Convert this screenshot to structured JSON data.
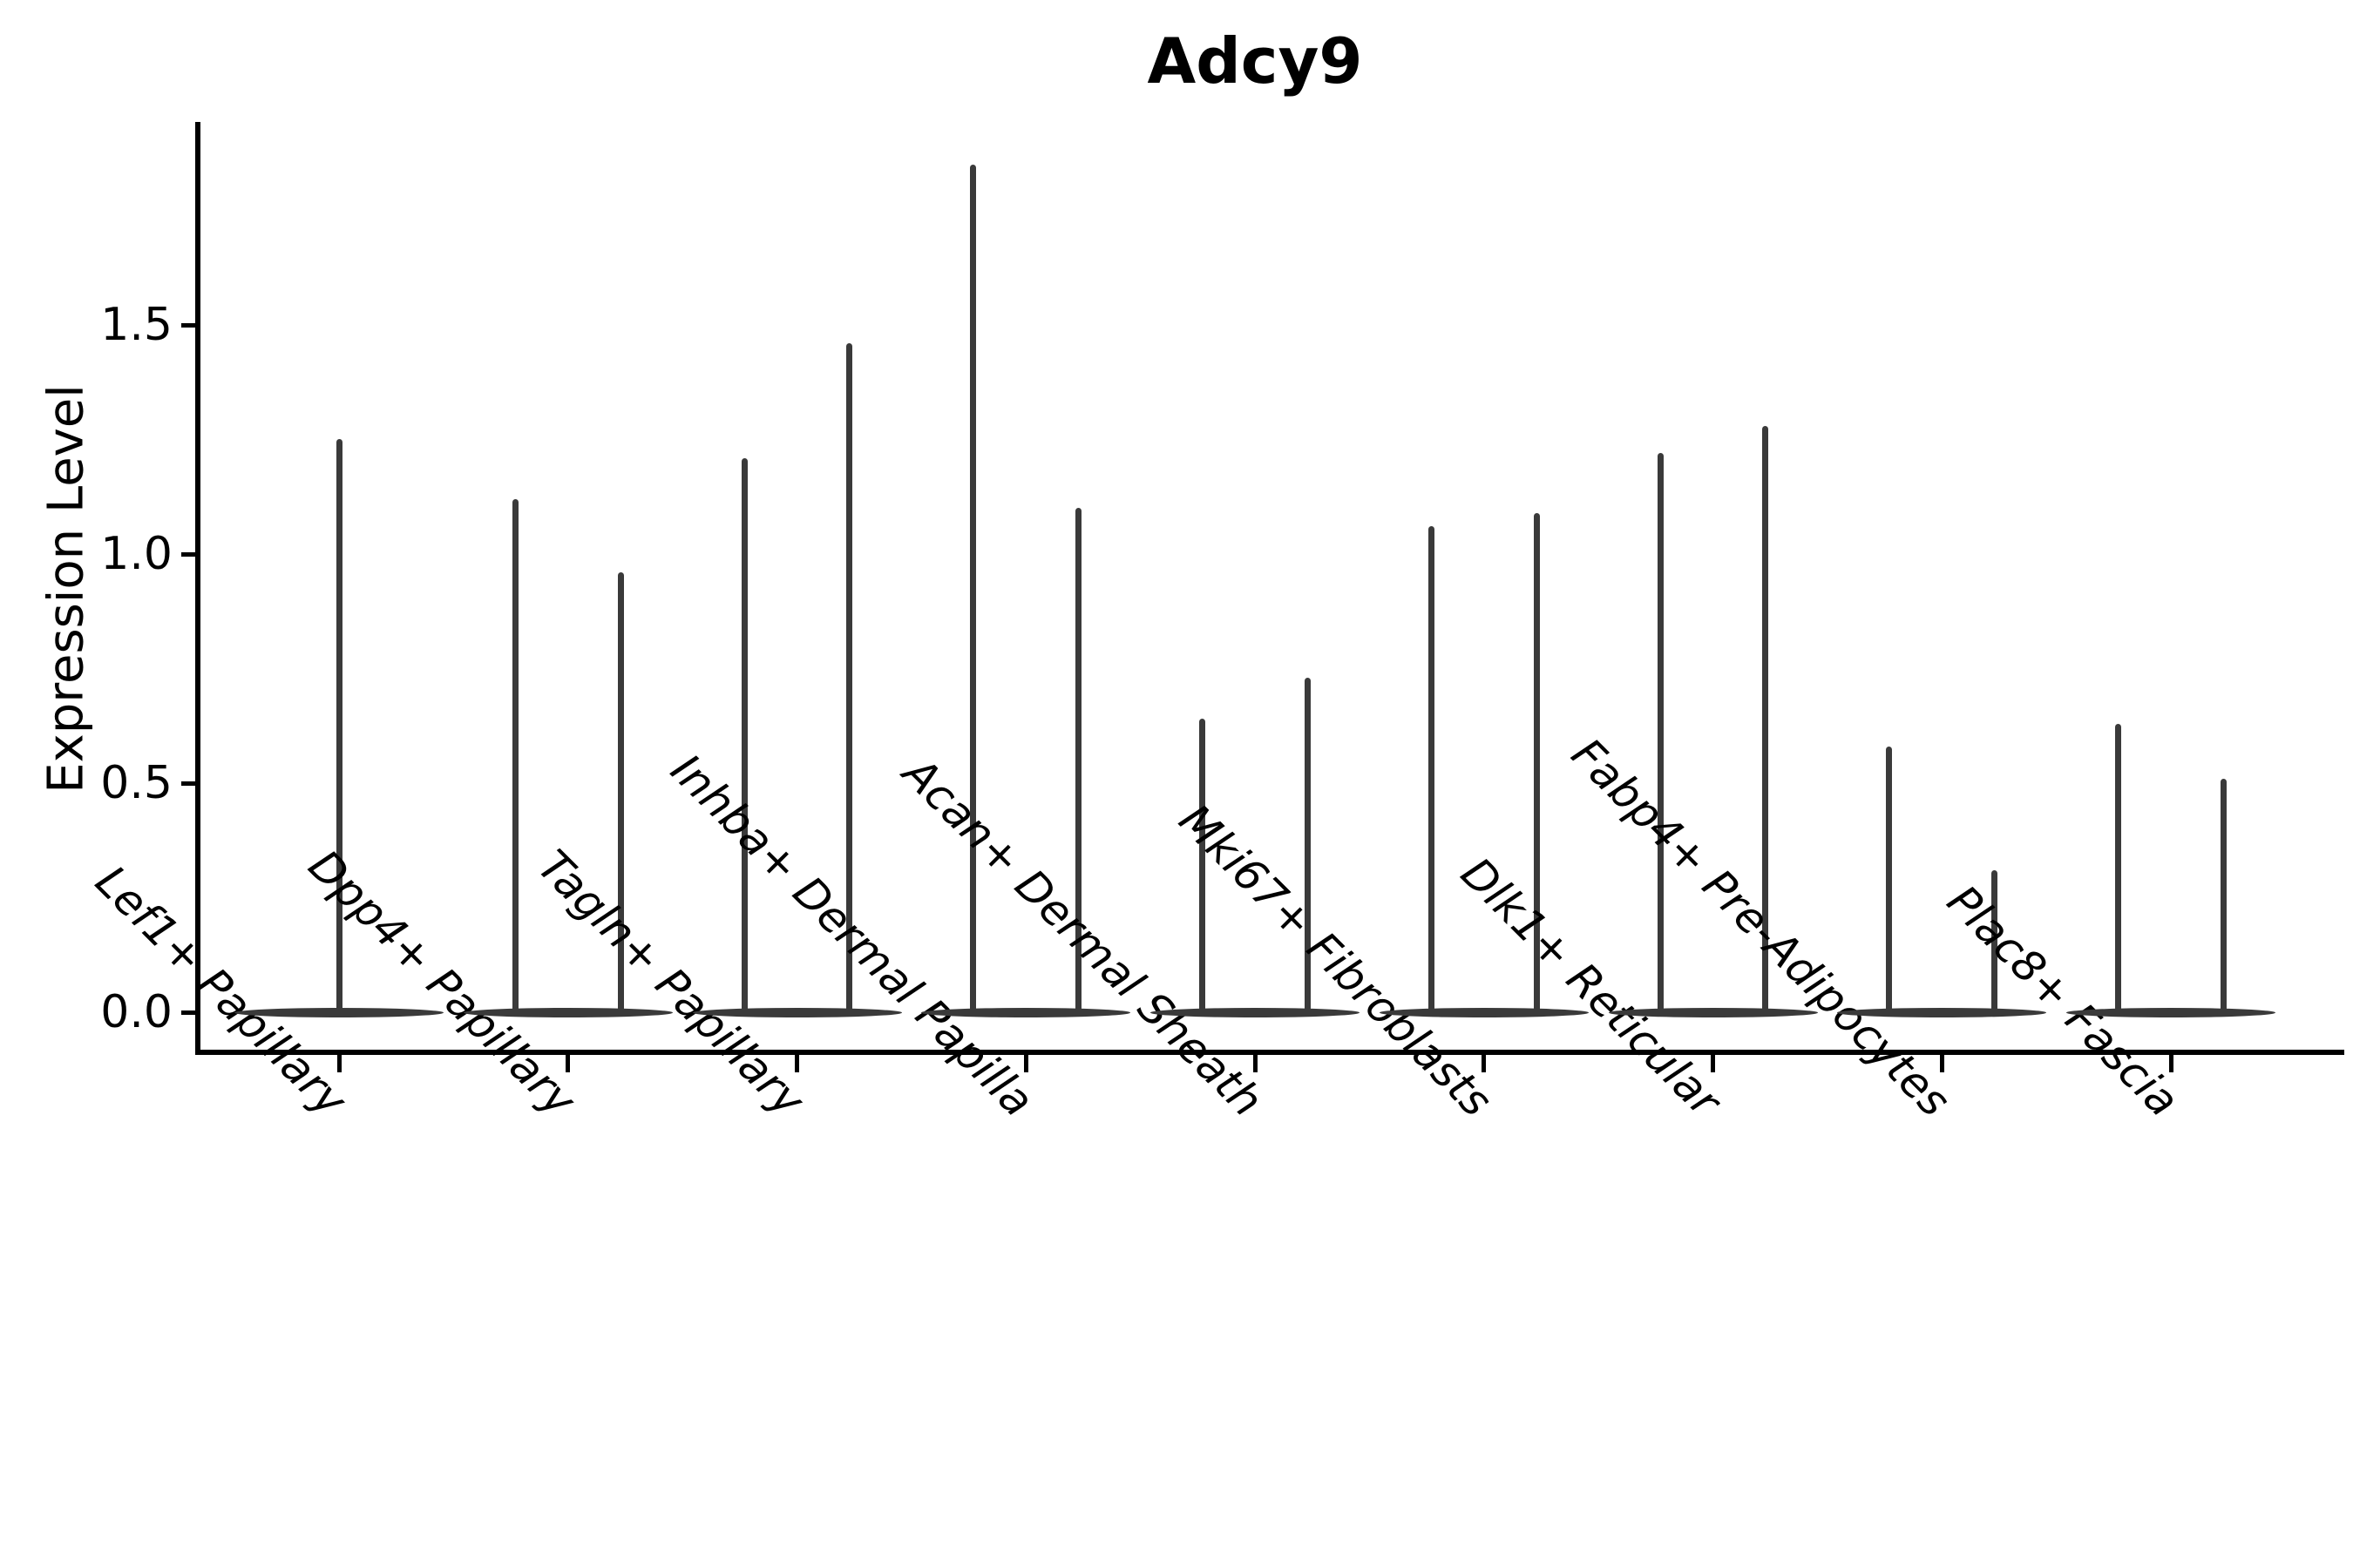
{
  "header": {
    "title": "Adcy9"
  },
  "y_axis": {
    "label": "Expression Level",
    "tick_labels": [
      "0.0",
      "0.5",
      "1.0",
      "1.5"
    ],
    "tick_values": [
      0.0,
      0.5,
      1.0,
      1.5
    ]
  },
  "x_axis": {
    "tick_labels": [
      "Lef1+ Papillary",
      "Dpp4+ Papillary",
      "Tagln+ Papillary",
      "Inhba+ Dermal Papilla",
      "Acan+ Dermal Sheath",
      "Mki67+ Fibroblasts",
      "Dlk1+ Reticular",
      "Fabp4+ Pre-Adipocytes",
      "Plac8+ Fascia"
    ]
  },
  "colors": {
    "violin_stroke": "#3a3a3a",
    "axis": "#000000",
    "background": "#ffffff"
  },
  "chart_data": {
    "type": "violin",
    "title": "Adcy9",
    "xlabel": "",
    "ylabel": "Expression Level",
    "ylim": [
      -0.09,
      1.94
    ],
    "yticks": [
      0.0,
      0.5,
      1.0,
      1.5
    ],
    "grid": false,
    "legend": "none",
    "categories": [
      "Lef1+ Papillary",
      "Dpp4+ Papillary",
      "Tagln+ Papillary",
      "Inhba+ Dermal Papilla",
      "Acan+ Dermal Sheath",
      "Mki67+ Fibroblasts",
      "Dlk1+ Reticular",
      "Fabp4+ Pre-Adipocytes",
      "Plac8+ Fascia"
    ],
    "violins": [
      {
        "category": "Lef1+ Papillary",
        "body_value": 0.0,
        "peak_values": [
          1.25
        ],
        "peak_offsets": [
          0.0
        ]
      },
      {
        "category": "Dpp4+ Papillary",
        "body_value": 0.0,
        "peak_values": [
          1.12,
          0.96
        ],
        "peak_offsets": [
          -0.23,
          0.23
        ]
      },
      {
        "category": "Tagln+ Papillary",
        "body_value": 0.0,
        "peak_values": [
          1.21,
          1.46
        ],
        "peak_offsets": [
          -0.23,
          0.23
        ]
      },
      {
        "category": "Inhba+ Dermal Papilla",
        "body_value": 0.0,
        "peak_values": [
          1.85,
          1.1
        ],
        "peak_offsets": [
          -0.23,
          0.23
        ]
      },
      {
        "category": "Acan+ Dermal Sheath",
        "body_value": 0.0,
        "peak_values": [
          0.64,
          0.73
        ],
        "peak_offsets": [
          -0.23,
          0.23
        ]
      },
      {
        "category": "Mki67+ Fibroblasts",
        "body_value": 0.0,
        "peak_values": [
          1.06,
          1.09
        ],
        "peak_offsets": [
          -0.23,
          0.23
        ]
      },
      {
        "category": "Dlk1+ Reticular",
        "body_value": 0.0,
        "peak_values": [
          1.22,
          1.28
        ],
        "peak_offsets": [
          -0.23,
          0.23
        ]
      },
      {
        "category": "Fabp4+ Pre-Adipocytes",
        "body_value": 0.0,
        "peak_values": [
          0.58,
          0.31
        ],
        "peak_offsets": [
          -0.23,
          0.23
        ]
      },
      {
        "category": "Plac8+ Fascia",
        "body_value": 0.0,
        "peak_values": [
          0.63,
          0.51
        ],
        "peak_offsets": [
          -0.23,
          0.23
        ]
      }
    ],
    "note": "Each violin collapses to a flat horizontal body at expression 0 with thin density spikes rising to the maximum expression value; all violins share one dark-gray color and there is no legend."
  }
}
